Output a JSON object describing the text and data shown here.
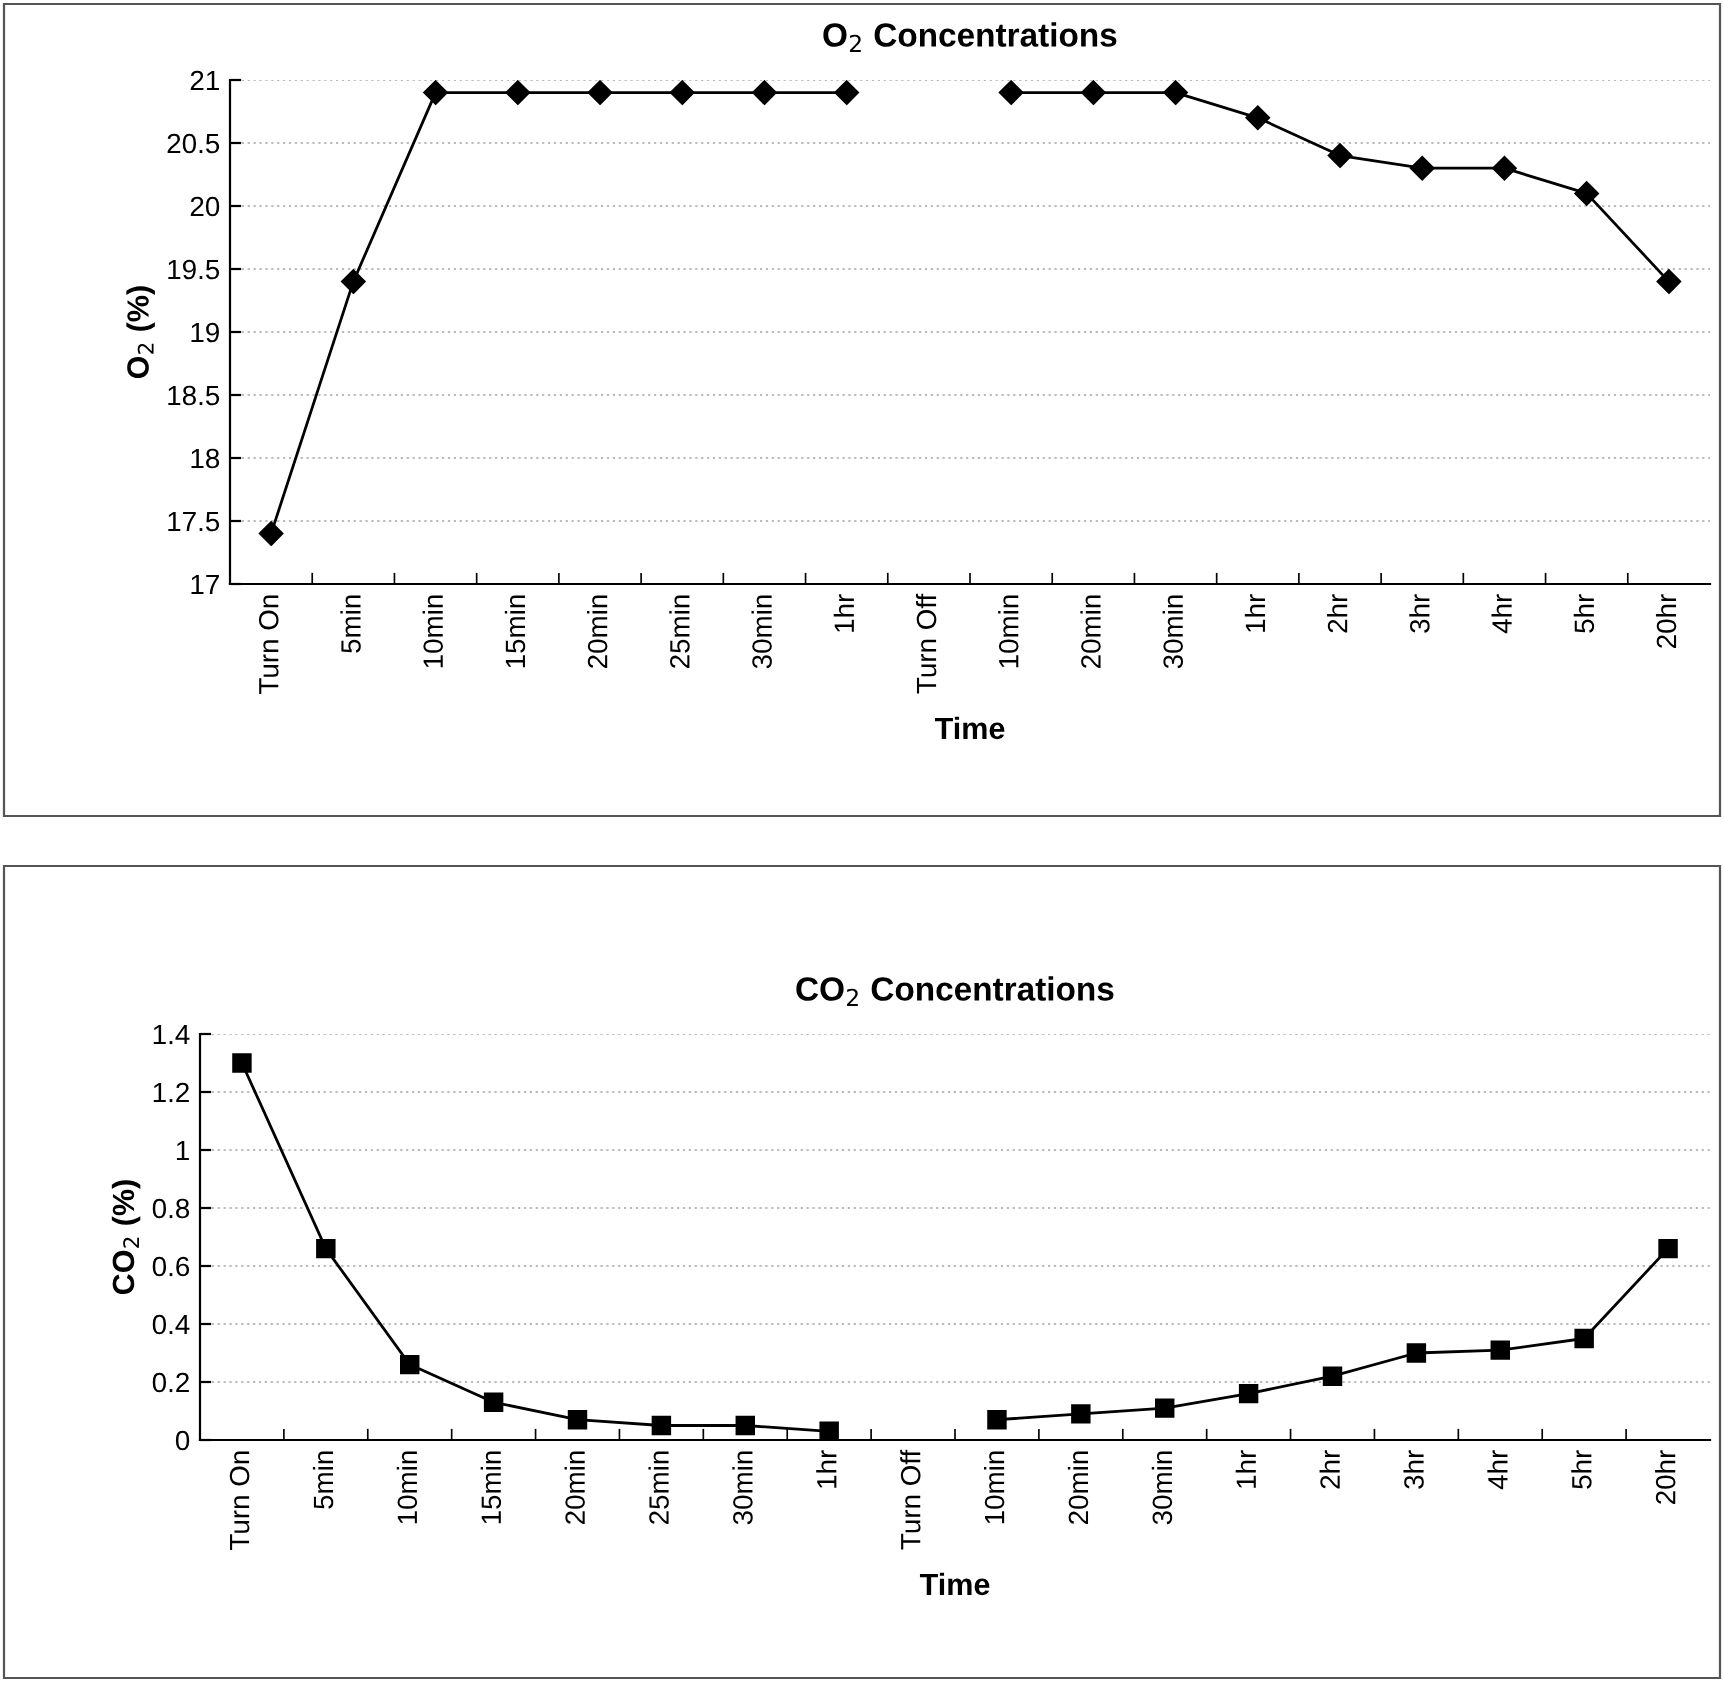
{
  "chart_data": [
    {
      "type": "line",
      "title": "O$_{2}$ Concentrations",
      "xlabel": "Time",
      "ylabel": "O$_{2}$ (%)",
      "categories": [
        "Turn On",
        "5min",
        "10min",
        "15min",
        "20min",
        "25min",
        "30min",
        "1hr",
        "Turn Off",
        "10min",
        "20min",
        "30min",
        "1hr",
        "2hr",
        "3hr",
        "4hr",
        "5hr",
        "20hr"
      ],
      "series": [
        {
          "color": "#000000",
          "values": [
            17.4,
            19.4,
            20.9,
            20.9,
            20.9,
            20.9,
            20.9,
            20.9,
            null,
            20.9,
            20.9,
            20.9,
            20.7,
            20.4,
            20.3,
            20.3,
            20.1,
            19.4
          ]
        }
      ],
      "ylim": [
        17,
        21
      ],
      "yticks": [
        17,
        17.5,
        18,
        18.5,
        19,
        19.5,
        20,
        20.5,
        21
      ],
      "grid": "y",
      "marker": "diamond",
      "line_style": "solid"
    },
    {
      "type": "line",
      "title": "CO$_{2}$ Concentrations",
      "xlabel": "Time",
      "ylabel": "CO$_{2}$ (%)",
      "categories": [
        "Turn On",
        "5min",
        "10min",
        "15min",
        "20min",
        "25min",
        "30min",
        "1hr",
        "Turn Off",
        "10min",
        "20min",
        "30min",
        "1hr",
        "2hr",
        "3hr",
        "4hr",
        "5hr",
        "20hr"
      ],
      "series": [
        {
          "color": "#000000",
          "values": [
            1.3,
            0.66,
            0.26,
            0.13,
            0.07,
            0.05,
            0.05,
            0.03,
            null,
            0.07,
            0.09,
            0.11,
            0.16,
            0.22,
            0.3,
            0.31,
            0.35,
            0.66
          ]
        }
      ],
      "ylim": [
        0,
        1.4
      ],
      "yticks": [
        0,
        0.2,
        0.4,
        0.6,
        0.8,
        1,
        1.2,
        1.4
      ],
      "grid": "y",
      "marker": "square",
      "line_style": "solid"
    }
  ]
}
